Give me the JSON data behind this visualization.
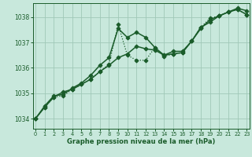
{
  "title": "Graphe pression niveau de la mer (hPa)",
  "bg_color": "#c8e8dc",
  "grid_color": "#a0c8b8",
  "line_color": "#1a5c2a",
  "ylim": [
    1033.6,
    1038.55
  ],
  "xlim": [
    -0.3,
    23.3
  ],
  "yticks": [
    1034,
    1035,
    1036,
    1037,
    1038
  ],
  "xticks": [
    0,
    1,
    2,
    3,
    4,
    5,
    6,
    7,
    8,
    9,
    10,
    11,
    12,
    13,
    14,
    15,
    16,
    17,
    18,
    19,
    20,
    21,
    22,
    23
  ],
  "series": [
    {
      "y": [
        1034.0,
        1034.45,
        1034.85,
        1034.9,
        1035.15,
        1035.35,
        1035.55,
        1035.85,
        1036.15,
        1037.7,
        1036.5,
        1036.3,
        1036.3,
        1036.8,
        1036.45,
        1036.55,
        1036.6,
        1037.05,
        1037.6,
        1037.95,
        1038.05,
        1038.2,
        1038.3,
        1038.1
      ],
      "ls": ":",
      "lw": 0.9,
      "marker": "D",
      "ms": 2.5
    },
    {
      "y": [
        1034.0,
        1034.45,
        1034.85,
        1035.05,
        1035.15,
        1035.35,
        1035.55,
        1035.85,
        1036.1,
        1036.4,
        1036.55,
        1036.85,
        1036.75,
        1036.7,
        1036.5,
        1036.55,
        1036.6,
        1037.05,
        1037.55,
        1037.9,
        1038.05,
        1038.2,
        1038.3,
        1038.1
      ],
      "ls": "-",
      "lw": 1.1,
      "marker": "D",
      "ms": 2.5
    },
    {
      "y": [
        1034.0,
        1034.5,
        1034.9,
        1034.95,
        1035.2,
        1035.4,
        1035.7,
        1036.1,
        1036.4,
        1037.55,
        1037.2,
        1037.4,
        1037.2,
        1036.8,
        1036.5,
        1036.65,
        1036.65,
        1037.05,
        1037.6,
        1037.8,
        1038.05,
        1038.2,
        1038.35,
        1038.25
      ],
      "ls": "-",
      "lw": 1.1,
      "marker": "D",
      "ms": 2.5
    }
  ]
}
